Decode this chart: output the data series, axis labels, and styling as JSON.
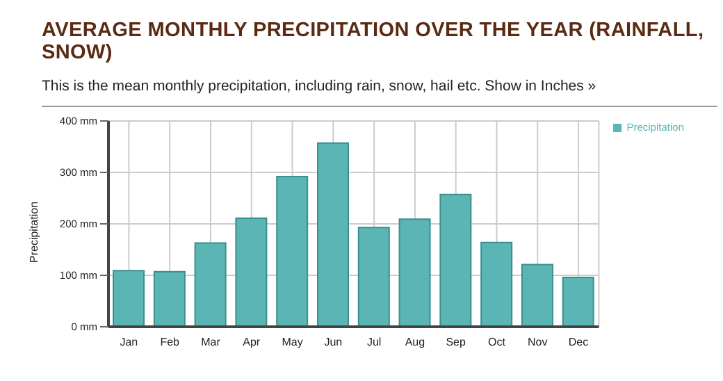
{
  "chart_data": {
    "type": "bar",
    "title": "AVERAGE MONTHLY PRECIPITATION OVER THE YEAR (RAINFALL, SNOW)",
    "subtitle": "This is the mean monthly precipitation, including rain, snow, hail etc. Show in Inches »",
    "ylabel": "Precipitation",
    "categories": [
      "Jan",
      "Feb",
      "Mar",
      "Apr",
      "May",
      "Jun",
      "Jul",
      "Aug",
      "Sep",
      "Oct",
      "Nov",
      "Dec"
    ],
    "series": [
      {
        "name": "Precipitation",
        "color": "#5bb5b5",
        "values": [
          109,
          107,
          163,
          211,
          292,
          357,
          193,
          209,
          257,
          164,
          121,
          96
        ]
      }
    ],
    "ylim": [
      0,
      400
    ],
    "yticks": [
      {
        "value": 0,
        "label": "0 mm"
      },
      {
        "value": 100,
        "label": "100 mm"
      },
      {
        "value": 200,
        "label": "200 mm"
      },
      {
        "value": 300,
        "label": "300 mm"
      },
      {
        "value": 400,
        "label": "400 mm"
      }
    ],
    "grid": true,
    "legend": "top right"
  }
}
